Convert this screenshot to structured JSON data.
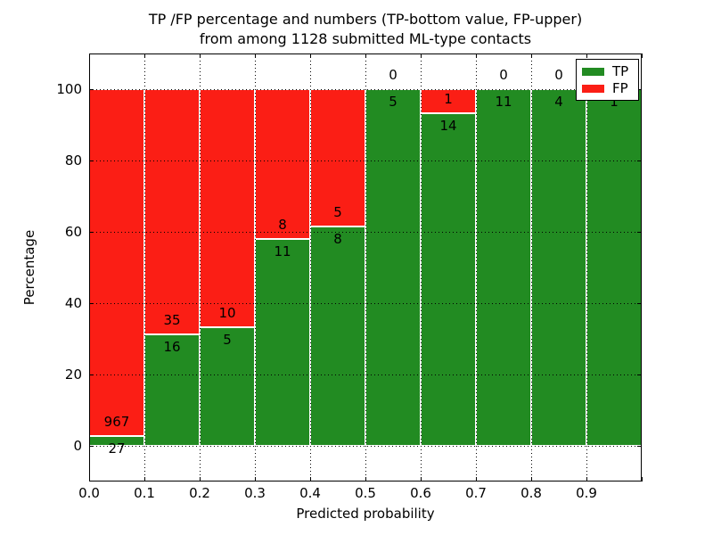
{
  "title": {
    "line1": "TP /FP percentage and numbers (TP-bottom value, FP-upper)",
    "line2": "from among 1128 submitted ML-type contacts"
  },
  "axes": {
    "xlabel": "Predicted probability",
    "ylabel": "Percentage",
    "xtick_labels": [
      "0.0",
      "0.1",
      "0.2",
      "0.3",
      "0.4",
      "0.5",
      "0.6",
      "0.7",
      "0.8",
      "0.9"
    ],
    "xtick_values": [
      0.0,
      0.1,
      0.2,
      0.3,
      0.4,
      0.5,
      0.6,
      0.7,
      0.8,
      0.9
    ],
    "ytick_labels": [
      "0",
      "20",
      "40",
      "60",
      "80",
      "100"
    ],
    "ytick_values": [
      0,
      20,
      40,
      60,
      80,
      100
    ],
    "xlim": [
      0.0,
      1.0
    ],
    "ylim": [
      -10,
      110
    ],
    "grid": "dotted black, drawn over bars"
  },
  "legend": {
    "position": "upper right",
    "items": [
      {
        "label": "TP",
        "color": "#228b22"
      },
      {
        "label": "FP",
        "color": "#fb1e15"
      }
    ]
  },
  "chart_data": {
    "type": "bar",
    "stacked": true,
    "normalized": "each bin scaled to 100%, TP percent at bottom, FP percent on top",
    "title": "TP /FP percentage and numbers (TP-bottom value, FP-upper)\nfrom among 1128 submitted ML-type contacts",
    "xlabel": "Predicted probability",
    "ylabel": "Percentage",
    "total_contacts": 1128,
    "bin_edges": [
      0.0,
      0.1,
      0.2,
      0.3,
      0.4,
      0.5,
      0.6,
      0.7,
      0.8,
      0.9,
      1.0
    ],
    "series": [
      {
        "name": "TP",
        "color": "#228b22",
        "counts": [
          27,
          16,
          5,
          11,
          8,
          5,
          14,
          11,
          4,
          1
        ]
      },
      {
        "name": "FP",
        "color": "#fb1e15",
        "counts": [
          967,
          35,
          10,
          8,
          5,
          0,
          1,
          0,
          0,
          0
        ]
      }
    ],
    "tp_percent_per_bin": [
      2.7,
      31.4,
      33.3,
      57.9,
      61.5,
      100.0,
      93.3,
      100.0,
      100.0,
      100.0
    ],
    "ylim": [
      -10,
      110
    ],
    "legend_position": "upper right",
    "note": "count labels: TP below segment boundary, FP above; last bin labels partially hidden by legend"
  }
}
